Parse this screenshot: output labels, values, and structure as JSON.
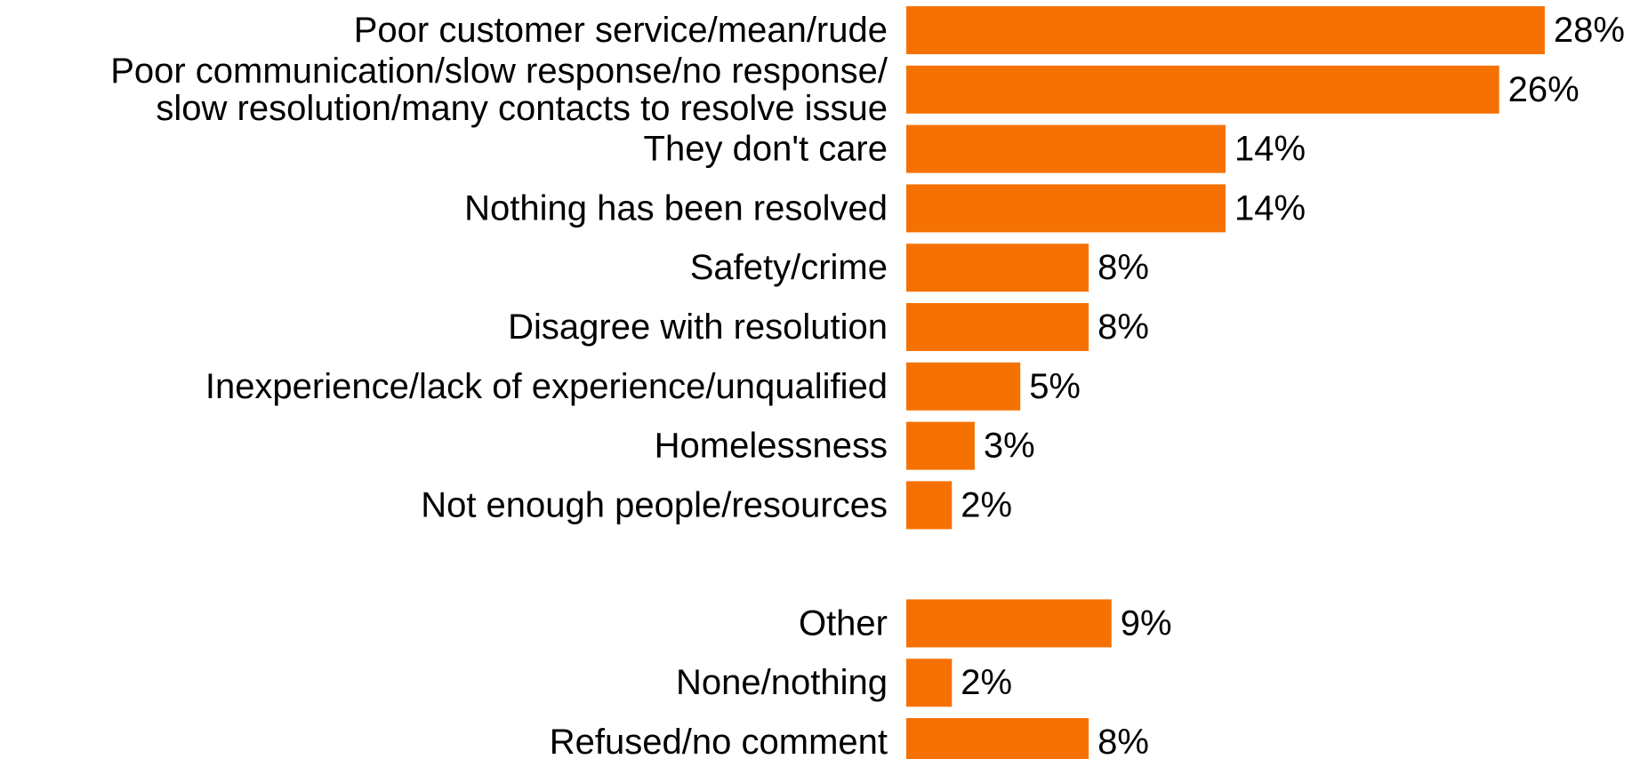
{
  "chart_data": {
    "type": "bar",
    "orientation": "horizontal",
    "bar_color": "#F57202",
    "text_color": "#000000",
    "value_suffix": "%",
    "categories": [
      [
        "Poor customer service/mean/rude"
      ],
      [
        "Poor communication/slow response/no response/",
        "slow resolution/many contacts to resolve issue"
      ],
      [
        "They don't care"
      ],
      [
        "Nothing has been resolved"
      ],
      [
        "Safety/crime"
      ],
      [
        "Disagree with resolution"
      ],
      [
        "Inexperience/lack of experience/unqualified"
      ],
      [
        "Homelessness"
      ],
      [
        "Not enough people/resources"
      ],
      [
        "Other"
      ],
      [
        "None/nothing"
      ],
      [
        "Refused/no comment"
      ]
    ],
    "values": [
      28,
      26,
      14,
      14,
      8,
      8,
      5,
      3,
      2,
      9,
      2,
      8
    ],
    "value_labels": [
      "28%",
      "26%",
      "14%",
      "14%",
      "8%",
      "8%",
      "5%",
      "3%",
      "2%",
      "9%",
      "2%",
      "8%"
    ],
    "groups": [
      {
        "start": 0,
        "end": 8
      },
      {
        "start": 9,
        "end": 11
      }
    ],
    "title": "",
    "xlabel": "",
    "ylabel": "",
    "xlim": [
      0,
      28
    ],
    "grid": false,
    "legend": "none"
  }
}
